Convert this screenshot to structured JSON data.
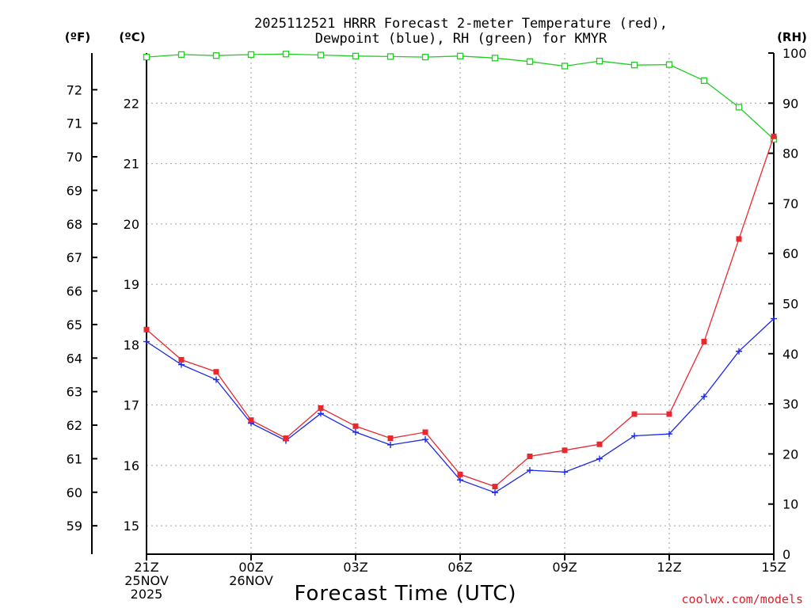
{
  "title": {
    "line1": "2025112521 HRRR Forecast 2-meter Temperature (red),",
    "line2": "Dewpoint (blue), RH (green) for KMYR"
  },
  "units": {
    "f": "(ºF)",
    "c": "(ºC)",
    "rh": "(RH)"
  },
  "xlabel": "Forecast Time (UTC)",
  "credit": "coolwx.com/models",
  "colors": {
    "temperature": "#e8282e",
    "dewpoint": "#1c28e8",
    "rh": "#22cc22"
  },
  "chart_data": {
    "type": "line",
    "x": [
      0,
      1,
      2,
      3,
      4,
      5,
      6,
      7,
      8,
      9,
      10,
      11,
      12,
      13,
      14,
      15,
      16,
      17,
      18
    ],
    "xlim": [
      0,
      18
    ],
    "x_ticks": [
      {
        "x": 0,
        "lines": [
          "21Z",
          "25NOV",
          "2025"
        ]
      },
      {
        "x": 3,
        "lines": [
          "00Z",
          "26NOV"
        ]
      },
      {
        "x": 6,
        "lines": [
          "03Z"
        ]
      },
      {
        "x": 9,
        "lines": [
          "06Z"
        ]
      },
      {
        "x": 12,
        "lines": [
          "09Z"
        ]
      },
      {
        "x": 15,
        "lines": [
          "12Z"
        ]
      },
      {
        "x": 18,
        "lines": [
          "15Z"
        ]
      }
    ],
    "ylim_c": [
      14.53,
      22.83
    ],
    "ylim_rh": [
      0,
      100
    ],
    "y_c_ticks": [
      "15",
      "16",
      "17",
      "18",
      "19",
      "20",
      "21",
      "22"
    ],
    "y_f_ticks": [
      "59",
      "60",
      "61",
      "62",
      "63",
      "64",
      "65",
      "66",
      "67",
      "68",
      "69",
      "70",
      "71",
      "72"
    ],
    "y_rh_ticks": [
      "0",
      "10",
      "20",
      "30",
      "40",
      "50",
      "60",
      "70",
      "80",
      "90",
      "100"
    ],
    "series": [
      {
        "name": "Temperature",
        "axis": "c",
        "marker": "filled-square",
        "values": [
          18.25,
          17.75,
          17.55,
          16.75,
          16.45,
          16.95,
          16.65,
          16.45,
          16.55,
          15.85,
          15.65,
          16.15,
          16.25,
          16.35,
          16.85,
          16.85,
          18.05,
          19.75,
          21.45
        ]
      },
      {
        "name": "Dewpoint",
        "axis": "c",
        "marker": "plus",
        "values": [
          18.05,
          17.67,
          17.42,
          16.7,
          16.41,
          16.86,
          16.55,
          16.34,
          16.43,
          15.76,
          15.55,
          15.92,
          15.89,
          16.11,
          16.49,
          16.52,
          17.14,
          17.89,
          18.43
        ]
      },
      {
        "name": "RH",
        "axis": "rh",
        "marker": "open-square",
        "values": [
          99.2,
          99.7,
          99.5,
          99.7,
          99.8,
          99.6,
          99.4,
          99.3,
          99.2,
          99.4,
          99.0,
          98.3,
          97.4,
          98.4,
          97.6,
          97.7,
          94.5,
          89.2,
          82.8
        ]
      }
    ]
  }
}
